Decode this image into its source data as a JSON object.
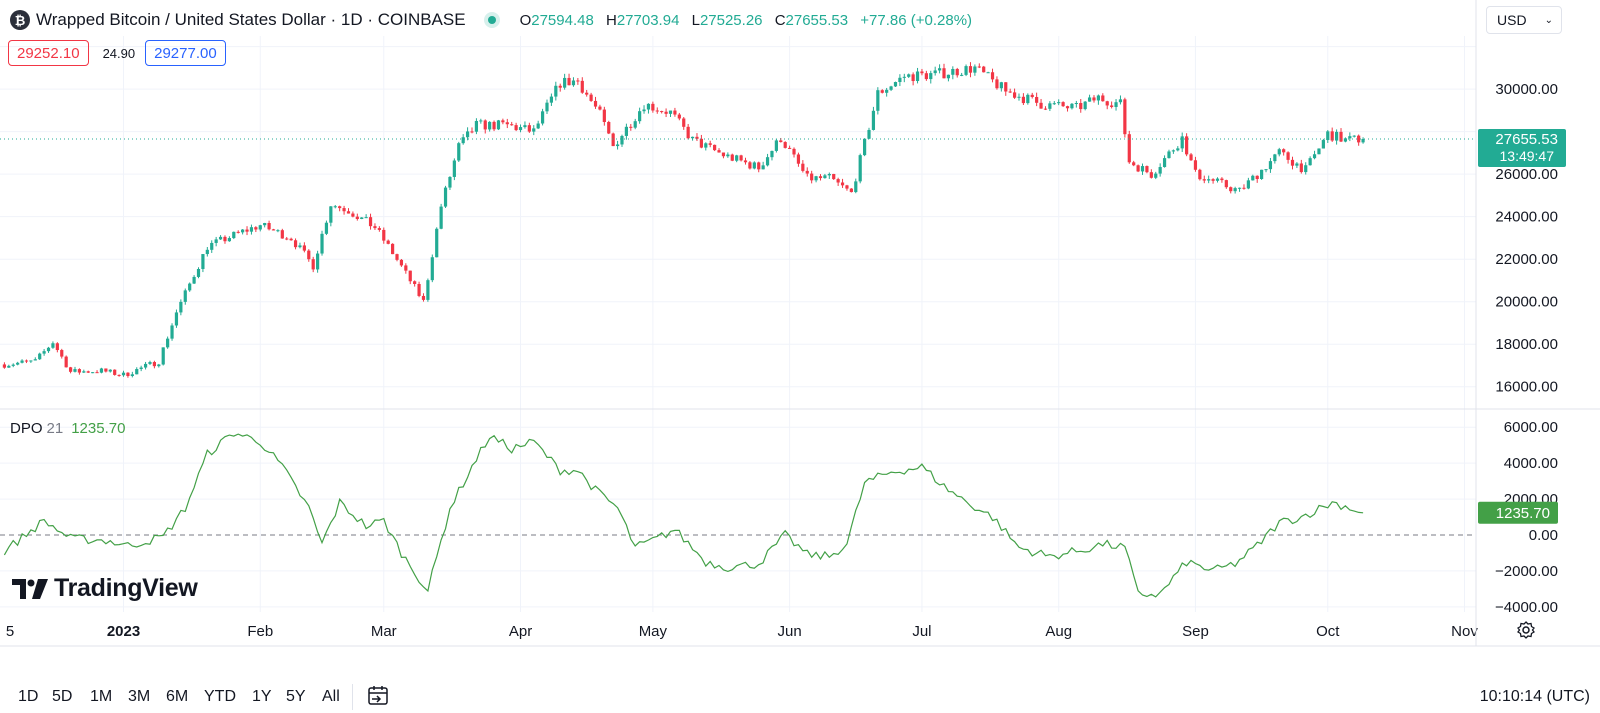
{
  "header": {
    "symbol_glyph": "₿",
    "title": "Wrapped Bitcoin / United States Dollar · 1D · COINBASE",
    "o_label": "O",
    "o_value": "27594.48",
    "h_label": "H",
    "h_value": "27703.94",
    "l_label": "L",
    "l_value": "27525.26",
    "c_label": "C",
    "c_value": "27655.53",
    "change": "+77.86 (+0.28%)"
  },
  "quote": {
    "sell": "29252.10",
    "spread": "24.90",
    "buy": "29277.00"
  },
  "currency": {
    "label": "USD"
  },
  "price_axis": {
    "ticks": [
      "30000.00",
      "26000.00",
      "24000.00",
      "22000.00",
      "20000.00",
      "18000.00",
      "16000.00"
    ],
    "last_price": "27655.53",
    "countdown": "13:49:47"
  },
  "dpo": {
    "name": "DPO",
    "length": "21",
    "value": "1235.70",
    "axis_ticks": [
      "6000.00",
      "4000.00",
      "2000.00",
      "0.00",
      "−2000.00",
      "−4000.00"
    ]
  },
  "time_axis": {
    "labels": [
      "5",
      "2023",
      "Feb",
      "Mar",
      "Apr",
      "May",
      "Jun",
      "Jul",
      "Aug",
      "Sep",
      "Oct",
      "Nov"
    ]
  },
  "timeframes": [
    "1D",
    "5D",
    "1M",
    "3M",
    "6M",
    "YTD",
    "1Y",
    "5Y",
    "All"
  ],
  "clock": "10:10:14 (UTC)",
  "brand": "TradingView",
  "colors": {
    "up": "#22ab94",
    "down": "#f23645",
    "dpo": "#43a047",
    "grid": "#f0f3fa"
  },
  "chart_data": {
    "type": "candlestick",
    "price_range": [
      15000,
      32500
    ],
    "dpo_range": [
      -4000,
      6500
    ],
    "anchors_close": [
      [
        "2022-12-05",
        17050
      ],
      [
        "2022-12-12",
        17200
      ],
      [
        "2022-12-16",
        18100
      ],
      [
        "2022-12-20",
        16700
      ],
      [
        "2022-12-27",
        16750
      ],
      [
        "2023-01-01",
        16550
      ],
      [
        "2023-01-09",
        17200
      ],
      [
        "2023-01-13",
        19500
      ],
      [
        "2023-01-20",
        22600
      ],
      [
        "2023-01-28",
        23300
      ],
      [
        "2023-02-01",
        23600
      ],
      [
        "2023-02-08",
        23000
      ],
      [
        "2023-02-13",
        21700
      ],
      [
        "2023-02-17",
        24600
      ],
      [
        "2023-02-21",
        24300
      ],
      [
        "2023-02-27",
        23500
      ],
      [
        "2023-03-03",
        22300
      ],
      [
        "2023-03-10",
        20000
      ],
      [
        "2023-03-14",
        24500
      ],
      [
        "2023-03-18",
        27300
      ],
      [
        "2023-03-22",
        28300
      ],
      [
        "2023-03-29",
        28300
      ],
      [
        "2023-04-04",
        28000
      ],
      [
        "2023-04-10",
        30300
      ],
      [
        "2023-04-14",
        30400
      ],
      [
        "2023-04-19",
        28800
      ],
      [
        "2023-04-22",
        27300
      ],
      [
        "2023-04-29",
        29300
      ],
      [
        "2023-05-05",
        28900
      ],
      [
        "2023-05-10",
        27600
      ],
      [
        "2023-05-17",
        26900
      ],
      [
        "2023-05-25",
        26300
      ],
      [
        "2023-05-30",
        27700
      ],
      [
        "2023-06-05",
        25800
      ],
      [
        "2023-06-10",
        25800
      ],
      [
        "2023-06-15",
        25100
      ],
      [
        "2023-06-21",
        29800
      ],
      [
        "2023-06-27",
        30600
      ],
      [
        "2023-07-04",
        30700
      ],
      [
        "2023-07-13",
        31000
      ],
      [
        "2023-07-20",
        29900
      ],
      [
        "2023-07-28",
        29300
      ],
      [
        "2023-08-05",
        29100
      ],
      [
        "2023-08-10",
        29600
      ],
      [
        "2023-08-15",
        29300
      ],
      [
        "2023-08-17",
        26600
      ],
      [
        "2023-08-22",
        26000
      ],
      [
        "2023-08-29",
        27700
      ],
      [
        "2023-09-01",
        26000
      ],
      [
        "2023-09-11",
        25200
      ],
      [
        "2023-09-20",
        27000
      ],
      [
        "2023-09-26",
        26200
      ],
      [
        "2023-10-01",
        27900
      ],
      [
        "2023-10-05",
        27600
      ],
      [
        "2023-10-09",
        27655
      ]
    ],
    "anchors_dpo": [
      [
        "2022-12-05",
        -900
      ],
      [
        "2022-12-14",
        800
      ],
      [
        "2022-12-20",
        -200
      ],
      [
        "2022-12-28",
        -300
      ],
      [
        "2023-01-02",
        -600
      ],
      [
        "2023-01-10",
        -100
      ],
      [
        "2023-01-15",
        1500
      ],
      [
        "2023-01-20",
        4500
      ],
      [
        "2023-01-26",
        5700
      ],
      [
        "2023-02-01",
        5200
      ],
      [
        "2023-02-06",
        3800
      ],
      [
        "2023-02-12",
        1500
      ],
      [
        "2023-02-15",
        -500
      ],
      [
        "2023-02-19",
        1800
      ],
      [
        "2023-02-25",
        500
      ],
      [
        "2023-03-01",
        800
      ],
      [
        "2023-03-05",
        -1000
      ],
      [
        "2023-03-11",
        -3100
      ],
      [
        "2023-03-16",
        1500
      ],
      [
        "2023-03-21",
        3800
      ],
      [
        "2023-03-25",
        5500
      ],
      [
        "2023-03-30",
        4800
      ],
      [
        "2023-04-04",
        5200
      ],
      [
        "2023-04-10",
        3600
      ],
      [
        "2023-04-14",
        3600
      ],
      [
        "2023-04-18",
        2500
      ],
      [
        "2023-04-23",
        1500
      ],
      [
        "2023-04-27",
        -700
      ],
      [
        "2023-05-01",
        -300
      ],
      [
        "2023-05-06",
        300
      ],
      [
        "2023-05-13",
        -1500
      ],
      [
        "2023-05-18",
        -1800
      ],
      [
        "2023-05-25",
        -1600
      ],
      [
        "2023-05-31",
        0
      ],
      [
        "2023-06-05",
        -1100
      ],
      [
        "2023-06-10",
        -1200
      ],
      [
        "2023-06-14",
        -500
      ],
      [
        "2023-06-18",
        2900
      ],
      [
        "2023-06-24",
        3500
      ],
      [
        "2023-07-01",
        3800
      ],
      [
        "2023-07-06",
        2700
      ],
      [
        "2023-07-12",
        1700
      ],
      [
        "2023-07-17",
        1000
      ],
      [
        "2023-07-23",
        -700
      ],
      [
        "2023-07-30",
        -1200
      ],
      [
        "2023-08-07",
        -800
      ],
      [
        "2023-08-11",
        -500
      ],
      [
        "2023-08-16",
        -700
      ],
      [
        "2023-08-19",
        -3300
      ],
      [
        "2023-08-24",
        -3300
      ],
      [
        "2023-08-30",
        -1500
      ],
      [
        "2023-09-05",
        -2000
      ],
      [
        "2023-09-10",
        -1600
      ],
      [
        "2023-09-15",
        -600
      ],
      [
        "2023-09-20",
        700
      ],
      [
        "2023-09-25",
        1000
      ],
      [
        "2023-10-02",
        1800
      ],
      [
        "2023-10-05",
        1600
      ],
      [
        "2023-10-09",
        1235
      ]
    ]
  }
}
